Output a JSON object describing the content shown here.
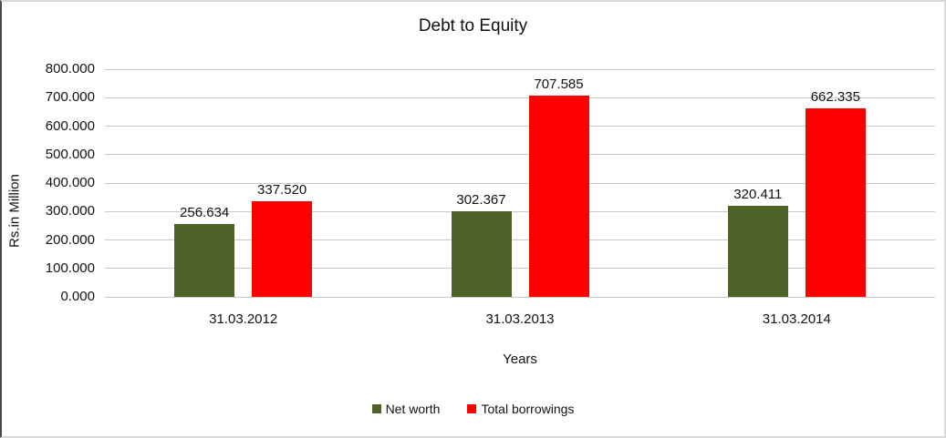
{
  "chart_data": {
    "type": "bar",
    "title": "Debt to Equity",
    "xlabel": "Years",
    "ylabel": "Rs.in Million",
    "categories": [
      "31.03.2012",
      "31.03.2013",
      "31.03.2014"
    ],
    "series": [
      {
        "name": "Net worth",
        "color": "#4F6228",
        "values": [
          256.634,
          302.367,
          320.411
        ]
      },
      {
        "name": "Total borrowings",
        "color": "#FF0000",
        "values": [
          337.52,
          707.585,
          662.335
        ]
      }
    ],
    "data_labels": [
      [
        "256.634",
        "302.367",
        "320.411"
      ],
      [
        "337.520",
        "707.585",
        "662.335"
      ]
    ],
    "ylim": [
      0,
      800
    ],
    "ytick_step": 100,
    "ytick_labels": [
      "0.000",
      "100.000",
      "200.000",
      "300.000",
      "400.000",
      "500.000",
      "600.000",
      "700.000",
      "800.000"
    ],
    "grid": true,
    "legend_position": "bottom",
    "gridline_color": "#c9c9c9"
  }
}
